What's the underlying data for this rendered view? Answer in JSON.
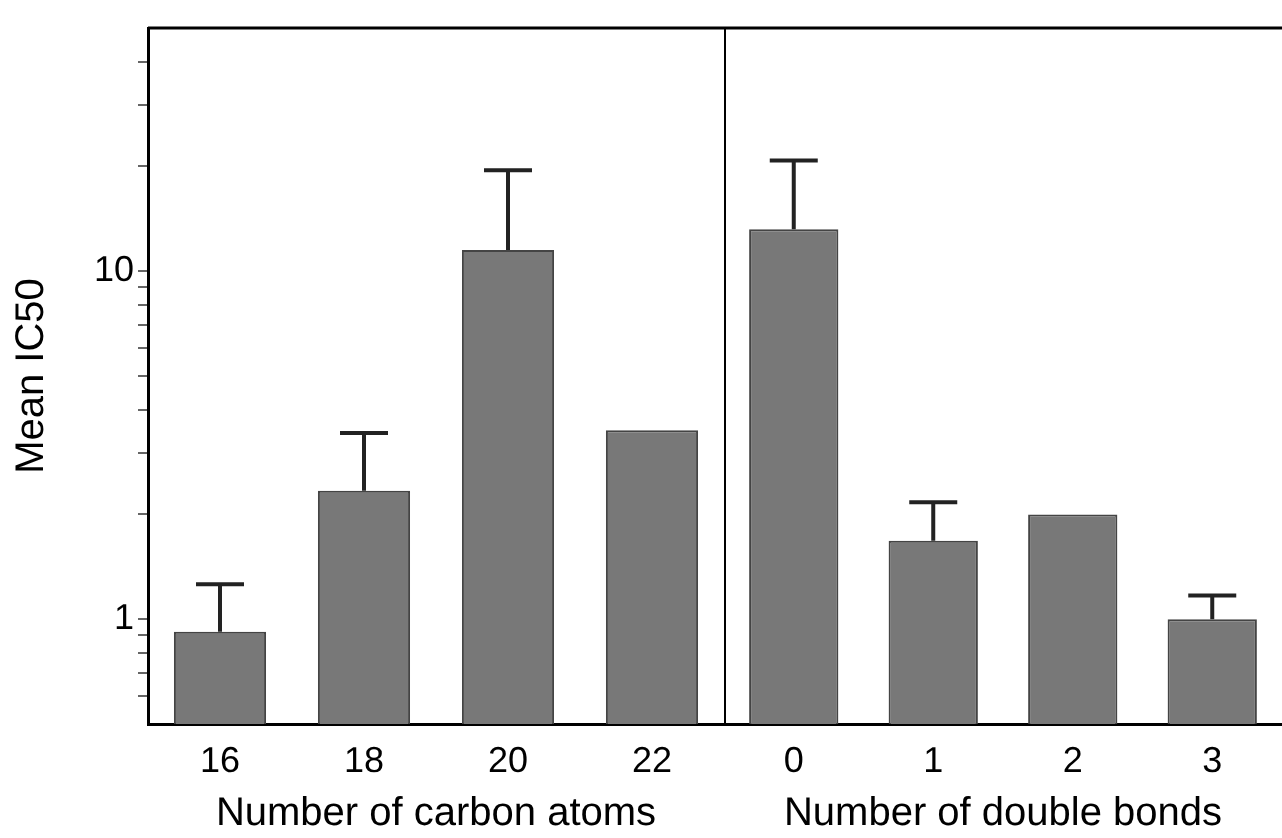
{
  "chart_data": [
    {
      "type": "bar",
      "xlabel": "Number of carbon atoms",
      "ylabel": "Mean IC50",
      "categories": [
        "16",
        "18",
        "20",
        "22"
      ],
      "values": [
        0.92,
        2.34,
        11.5,
        3.49
      ],
      "errors": [
        [
          0.92,
          1.26
        ],
        [
          2.34,
          3.43
        ],
        [
          11.5,
          19.5
        ],
        null
      ],
      "color": "#787878",
      "log": "y",
      "ylim": [
        0.5,
        50
      ],
      "yticks": [
        {
          "value": 0.6,
          "label": null
        },
        {
          "value": 0.7,
          "label": null
        },
        {
          "value": 0.8,
          "label": null
        },
        {
          "value": 0.9,
          "label": null
        },
        1,
        {
          "value": 2,
          "label": null
        },
        {
          "value": 3,
          "label": null
        },
        {
          "value": 4,
          "label": null
        },
        {
          "value": 5,
          "label": null
        },
        {
          "value": 6,
          "label": null
        },
        {
          "value": 7,
          "label": null
        },
        {
          "value": 8,
          "label": null
        },
        {
          "value": 9,
          "label": null
        },
        10,
        {
          "value": 20,
          "label": null
        },
        {
          "value": 30,
          "label": null
        },
        {
          "value": 40,
          "label": null
        }
      ],
      "grid": false,
      "legend": false
    },
    {
      "type": "bar",
      "xlabel": "Number of double bonds",
      "categories": [
        "0",
        "1",
        "2",
        "3"
      ],
      "values": [
        13.2,
        1.68,
        2.0,
        1.0
      ],
      "errors": [
        [
          13.2,
          20.8
        ],
        [
          1.68,
          2.17
        ],
        null,
        [
          1.0,
          1.17
        ]
      ],
      "color": "#787878",
      "log": "y",
      "ylim": [
        0.5,
        50
      ],
      "tick_labels": "x",
      "grid": false,
      "legend": false
    }
  ]
}
